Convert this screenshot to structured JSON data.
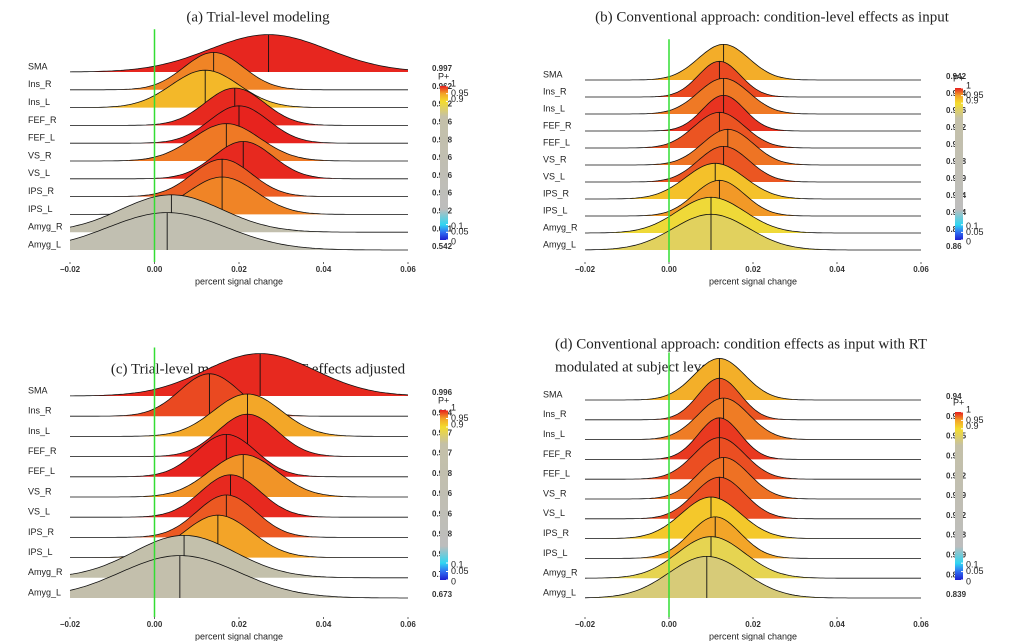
{
  "chart_data": [
    {
      "type": "ridgeline",
      "title": [
        "(a) Trial-level modeling"
      ],
      "categories": [
        "SMA",
        "Ins_R",
        "Ins_L",
        "FEF_R",
        "FEF_L",
        "VS_R",
        "VS_L",
        "IPS_R",
        "IPS_L",
        "Amyg_R",
        "Amyg_L"
      ],
      "medians": [
        0.027,
        0.014,
        0.012,
        0.019,
        0.02,
        0.017,
        0.021,
        0.016,
        0.016,
        0.004,
        0.003
      ],
      "spreads": [
        0.014,
        0.007,
        0.008,
        0.007,
        0.007,
        0.008,
        0.007,
        0.007,
        0.008,
        0.012,
        0.014
      ],
      "p_plus": [
        0.997,
        0.962,
        0.932,
        0.996,
        0.998,
        0.966,
        0.996,
        0.976,
        0.962,
        0.631,
        0.542
      ],
      "xlabel": "percent signal change",
      "xlim": [
        -0.02,
        0.06
      ],
      "xticks": [
        {
          "value": -0.02,
          "label": "−0.02"
        },
        {
          "value": 0,
          "label": "0.00"
        },
        0.02,
        0.04,
        0.06
      ]
    },
    {
      "type": "ridgeline",
      "title": [
        "(b) Conventional approach: condition-level effects as input"
      ],
      "categories": [
        "SMA",
        "Ins_R",
        "Ins_L",
        "FEF_R",
        "FEF_L",
        "VS_R",
        "VS_L",
        "IPS_R",
        "IPS_L",
        "Amyg_R",
        "Amyg_L"
      ],
      "medians": [
        0.013,
        0.012,
        0.013,
        0.013,
        0.012,
        0.014,
        0.013,
        0.011,
        0.012,
        0.01,
        0.01
      ],
      "spreads": [
        0.006,
        0.005,
        0.006,
        0.005,
        0.006,
        0.006,
        0.006,
        0.007,
        0.006,
        0.008,
        0.009
      ],
      "p_plus": [
        0.942,
        0.984,
        0.966,
        0.992,
        0.98,
        0.968,
        0.979,
        0.924,
        0.954,
        0.89,
        0.86
      ],
      "xlabel": "percent signal change",
      "xlim": [
        -0.02,
        0.06
      ],
      "xticks": [
        {
          "value": -0.02,
          "label": "−0.02"
        },
        {
          "value": 0,
          "label": "0.00"
        },
        0.02,
        0.04,
        0.06
      ]
    },
    {
      "type": "ridgeline",
      "title": [
        "(c) Trial-level modeling: trial RT effects adjusted"
      ],
      "categories": [
        "SMA",
        "Ins_R",
        "Ins_L",
        "FEF_R",
        "FEF_L",
        "VS_R",
        "VS_L",
        "IPS_R",
        "IPS_L",
        "Amyg_R",
        "Amyg_L"
      ],
      "medians": [
        0.025,
        0.013,
        0.022,
        0.022,
        0.017,
        0.021,
        0.018,
        0.017,
        0.015,
        0.007,
        0.006
      ],
      "spreads": [
        0.013,
        0.007,
        0.008,
        0.007,
        0.007,
        0.008,
        0.007,
        0.007,
        0.008,
        0.012,
        0.014
      ],
      "p_plus": [
        0.996,
        0.984,
        0.947,
        0.997,
        0.998,
        0.956,
        0.996,
        0.978,
        0.95,
        0.71,
        0.673
      ],
      "xlabel": "percent signal change",
      "xlim": [
        -0.02,
        0.06
      ],
      "xticks": [
        {
          "value": -0.02,
          "label": "−0.02"
        },
        {
          "value": 0,
          "label": "0.00"
        },
        0.02,
        0.04,
        0.06
      ]
    },
    {
      "type": "ridgeline",
      "title": [
        "(d) Conventional approach:  condition effects as input with RT",
        "modulated at subject level"
      ],
      "categories": [
        "SMA",
        "Ins_R",
        "Ins_L",
        "FEF_R",
        "FEF_L",
        "VS_R",
        "VS_L",
        "IPS_R",
        "IPS_L",
        "Amyg_R",
        "Amyg_L"
      ],
      "medians": [
        0.012,
        0.012,
        0.013,
        0.012,
        0.012,
        0.013,
        0.012,
        0.01,
        0.011,
        0.01,
        0.009
      ],
      "spreads": [
        0.006,
        0.005,
        0.006,
        0.005,
        0.006,
        0.006,
        0.006,
        0.007,
        0.006,
        0.008,
        0.009
      ],
      "p_plus": [
        0.94,
        0.98,
        0.965,
        0.99,
        0.982,
        0.969,
        0.982,
        0.918,
        0.949,
        0.87,
        0.839
      ],
      "xlabel": "percent signal change",
      "xlim": [
        -0.02,
        0.06
      ],
      "xticks": [
        {
          "value": -0.02,
          "label": "−0.02"
        },
        {
          "value": 0,
          "label": "0.00"
        },
        0.02,
        0.04,
        0.06
      ]
    }
  ],
  "colorbar": {
    "title": "P+",
    "lim": [
      0,
      1
    ],
    "ticks": [
      1,
      0.95,
      0.9,
      0.1,
      0.05,
      0
    ],
    "stops": [
      {
        "value": 0,
        "color": "#1e1ed0"
      },
      {
        "value": 0.05,
        "color": "#2f6ff2"
      },
      {
        "value": 0.1,
        "color": "#2fd6f2"
      },
      {
        "value": 0.2,
        "color": "#bdbdbd"
      },
      {
        "value": 0.8,
        "color": "#c4c0a8"
      },
      {
        "value": 0.9,
        "color": "#f4dc2c"
      },
      {
        "value": 0.95,
        "color": "#f3a428"
      },
      {
        "value": 1,
        "color": "#e61e1e"
      }
    ]
  },
  "reference_color": "#33dd33"
}
